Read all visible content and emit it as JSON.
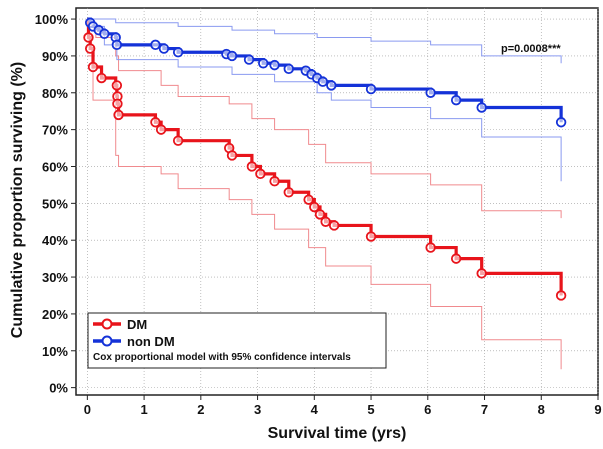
{
  "chart_data": {
    "type": "line",
    "subtype": "kaplan-meier",
    "title": "",
    "xlabel": "Survival time (yrs)",
    "ylabel": "Cumulative proportion surviving (%)",
    "xlim": [
      -0.2,
      9
    ],
    "ylim": [
      -0.02,
      1.03
    ],
    "x_ticks": [
      0,
      1,
      2,
      3,
      4,
      5,
      6,
      7,
      8,
      9
    ],
    "x_tick_labels": [
      "0",
      "1",
      "2",
      "3",
      "4",
      "5",
      "6",
      "7",
      "8",
      "9"
    ],
    "y_ticks": [
      0,
      0.1,
      0.2,
      0.3,
      0.4,
      0.5,
      0.6,
      0.7,
      0.8,
      0.9,
      1.0
    ],
    "y_tick_labels": [
      "0%",
      "10%",
      "20%",
      "30%",
      "40%",
      "50%",
      "60%",
      "70%",
      "80%",
      "90%",
      "100%"
    ],
    "grid": true,
    "annotation": "p=0.0008***",
    "legend": {
      "placement": "bottom-left",
      "note": "Cox proportional model with 95% confidence intervals"
    },
    "series": [
      {
        "name": "DM",
        "color": "#e8141b",
        "steps": [
          [
            0,
            1.0
          ],
          [
            0.02,
            0.95
          ],
          [
            0.05,
            0.92
          ],
          [
            0.1,
            0.87
          ],
          [
            0.25,
            0.84
          ],
          [
            0.5,
            0.82
          ],
          [
            0.52,
            0.79
          ],
          [
            0.53,
            0.77
          ],
          [
            0.55,
            0.74
          ],
          [
            1.2,
            0.72
          ],
          [
            1.3,
            0.7
          ],
          [
            1.6,
            0.67
          ],
          [
            2.5,
            0.65
          ],
          [
            2.55,
            0.63
          ],
          [
            2.9,
            0.6
          ],
          [
            3.05,
            0.58
          ],
          [
            3.3,
            0.56
          ],
          [
            3.55,
            0.53
          ],
          [
            3.9,
            0.51
          ],
          [
            4.0,
            0.49
          ],
          [
            4.1,
            0.47
          ],
          [
            4.2,
            0.45
          ],
          [
            4.35,
            0.44
          ],
          [
            5.0,
            0.41
          ],
          [
            6.05,
            0.38
          ],
          [
            6.5,
            0.35
          ],
          [
            6.95,
            0.31
          ],
          [
            8.35,
            0.25
          ]
        ],
        "censored": [
          [
            0.02,
            0.95
          ],
          [
            0.05,
            0.92
          ],
          [
            0.1,
            0.87
          ],
          [
            0.25,
            0.84
          ],
          [
            0.52,
            0.82
          ],
          [
            0.53,
            0.79
          ],
          [
            0.53,
            0.77
          ],
          [
            0.55,
            0.74
          ],
          [
            1.2,
            0.72
          ],
          [
            1.3,
            0.7
          ],
          [
            1.6,
            0.67
          ],
          [
            2.5,
            0.65
          ],
          [
            2.55,
            0.63
          ],
          [
            2.9,
            0.6
          ],
          [
            3.05,
            0.58
          ],
          [
            3.3,
            0.56
          ],
          [
            3.55,
            0.53
          ],
          [
            3.9,
            0.51
          ],
          [
            4.0,
            0.49
          ],
          [
            4.1,
            0.47
          ],
          [
            4.2,
            0.45
          ],
          [
            4.35,
            0.44
          ],
          [
            5.0,
            0.41
          ],
          [
            6.05,
            0.38
          ],
          [
            6.5,
            0.35
          ],
          [
            6.95,
            0.31
          ],
          [
            8.35,
            0.25
          ]
        ],
        "ci_upper": [
          [
            0,
            1.0
          ],
          [
            0.05,
            0.98
          ],
          [
            0.15,
            0.95
          ],
          [
            0.5,
            0.9
          ],
          [
            0.55,
            0.86
          ],
          [
            1.3,
            0.82
          ],
          [
            1.6,
            0.79
          ],
          [
            2.5,
            0.77
          ],
          [
            2.9,
            0.73
          ],
          [
            3.3,
            0.7
          ],
          [
            3.9,
            0.66
          ],
          [
            4.2,
            0.61
          ],
          [
            5.0,
            0.58
          ],
          [
            6.05,
            0.55
          ],
          [
            6.95,
            0.48
          ],
          [
            8.35,
            0.46
          ]
        ],
        "ci_lower": [
          [
            0,
            0.9
          ],
          [
            0.1,
            0.78
          ],
          [
            0.5,
            0.63
          ],
          [
            0.55,
            0.6
          ],
          [
            1.3,
            0.58
          ],
          [
            1.6,
            0.54
          ],
          [
            2.5,
            0.51
          ],
          [
            2.9,
            0.47
          ],
          [
            3.3,
            0.43
          ],
          [
            3.9,
            0.38
          ],
          [
            4.2,
            0.33
          ],
          [
            5.0,
            0.28
          ],
          [
            6.05,
            0.22
          ],
          [
            6.95,
            0.13
          ],
          [
            8.35,
            0.05
          ]
        ]
      },
      {
        "name": "non DM",
        "color": "#1432d8",
        "steps": [
          [
            0,
            1.0
          ],
          [
            0.05,
            0.99
          ],
          [
            0.1,
            0.98
          ],
          [
            0.2,
            0.97
          ],
          [
            0.3,
            0.96
          ],
          [
            0.5,
            0.95
          ],
          [
            0.52,
            0.93
          ],
          [
            1.2,
            0.93
          ],
          [
            1.35,
            0.92
          ],
          [
            1.6,
            0.91
          ],
          [
            2.45,
            0.905
          ],
          [
            2.55,
            0.9
          ],
          [
            2.85,
            0.89
          ],
          [
            3.1,
            0.88
          ],
          [
            3.3,
            0.875
          ],
          [
            3.55,
            0.865
          ],
          [
            3.85,
            0.86
          ],
          [
            3.95,
            0.85
          ],
          [
            4.05,
            0.84
          ],
          [
            4.15,
            0.83
          ],
          [
            4.3,
            0.82
          ],
          [
            5.0,
            0.81
          ],
          [
            6.05,
            0.8
          ],
          [
            6.5,
            0.78
          ],
          [
            6.95,
            0.76
          ],
          [
            8.35,
            0.72
          ]
        ],
        "censored": [
          [
            0.05,
            0.99
          ],
          [
            0.1,
            0.98
          ],
          [
            0.2,
            0.97
          ],
          [
            0.3,
            0.96
          ],
          [
            0.5,
            0.95
          ],
          [
            0.52,
            0.93
          ],
          [
            1.2,
            0.93
          ],
          [
            1.35,
            0.92
          ],
          [
            1.6,
            0.91
          ],
          [
            2.45,
            0.905
          ],
          [
            2.55,
            0.9
          ],
          [
            2.85,
            0.89
          ],
          [
            3.1,
            0.88
          ],
          [
            3.3,
            0.875
          ],
          [
            3.55,
            0.865
          ],
          [
            3.85,
            0.86
          ],
          [
            3.95,
            0.85
          ],
          [
            4.05,
            0.84
          ],
          [
            4.15,
            0.83
          ],
          [
            4.3,
            0.82
          ],
          [
            5.0,
            0.81
          ],
          [
            6.05,
            0.8
          ],
          [
            6.5,
            0.78
          ],
          [
            6.95,
            0.76
          ],
          [
            8.35,
            0.72
          ]
        ],
        "ci_upper": [
          [
            0,
            1.0
          ],
          [
            0.5,
            0.99
          ],
          [
            1.6,
            0.98
          ],
          [
            2.55,
            0.97
          ],
          [
            3.3,
            0.96
          ],
          [
            4.05,
            0.95
          ],
          [
            5.0,
            0.94
          ],
          [
            6.05,
            0.93
          ],
          [
            6.95,
            0.9
          ],
          [
            8.35,
            0.88
          ]
        ],
        "ci_lower": [
          [
            0,
            0.98
          ],
          [
            0.3,
            0.93
          ],
          [
            0.52,
            0.89
          ],
          [
            1.6,
            0.87
          ],
          [
            2.55,
            0.85
          ],
          [
            3.3,
            0.83
          ],
          [
            4.05,
            0.8
          ],
          [
            4.3,
            0.78
          ],
          [
            5.0,
            0.76
          ],
          [
            6.05,
            0.73
          ],
          [
            6.95,
            0.68
          ],
          [
            8.35,
            0.56
          ]
        ]
      }
    ]
  }
}
